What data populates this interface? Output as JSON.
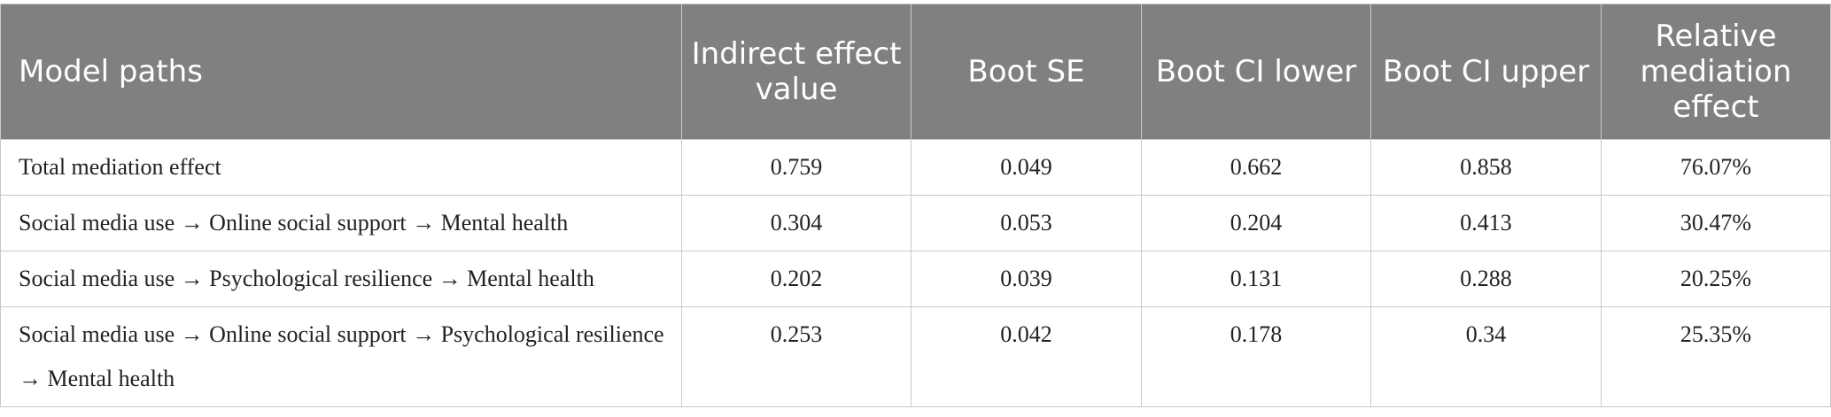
{
  "table": {
    "headers": [
      "Model paths",
      "Indirect effect value",
      "Boot SE",
      "Boot CI lower",
      "Boot CI upper",
      "Relative mediation effect"
    ],
    "rows": [
      [
        "Total mediation effect",
        "0.759",
        "0.049",
        "0.662",
        "0.858",
        "76.07%"
      ],
      [
        "Social media use → Online social support → Mental health",
        "0.304",
        "0.053",
        "0.204",
        "0.413",
        "30.47%"
      ],
      [
        "Social media use → Psychological resilience → Mental health",
        "0.202",
        "0.039",
        "0.131",
        "0.288",
        "20.25%"
      ],
      [
        "Social media use → Online social support → Psychological resilience → Mental health",
        "0.253",
        "0.042",
        "0.178",
        "0.34",
        "25.35%"
      ]
    ]
  }
}
